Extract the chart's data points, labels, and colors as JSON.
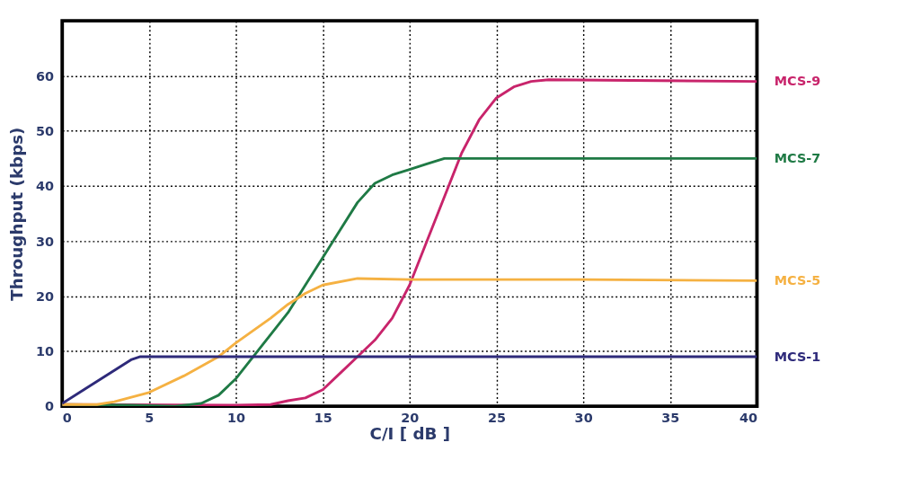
{
  "chart_data": {
    "type": "line",
    "xlabel": "C/I [ dB ]",
    "ylabel": "Throughput (kbps)",
    "xlim": [
      0,
      40
    ],
    "xticks": [
      0,
      5,
      10,
      15,
      20,
      25,
      30,
      35,
      40
    ],
    "ylim": [
      0,
      70
    ],
    "yticks": [
      0,
      10,
      20,
      30,
      40,
      50,
      60
    ],
    "grid": true,
    "legend": false,
    "marker": "none",
    "line_style": "solid",
    "series": [
      {
        "name": "MCS-9",
        "color": "#c8246b",
        "x": [
          0,
          10,
          12,
          13,
          14,
          15,
          16,
          17,
          18,
          19,
          20,
          21,
          22,
          23,
          24,
          25,
          26,
          27,
          28,
          40
        ],
        "values": [
          0.3,
          0.2,
          0.3,
          1,
          1.5,
          3,
          6,
          9,
          12,
          16,
          22,
          30,
          38,
          46,
          52,
          56,
          58,
          59,
          59.3,
          59
        ]
      },
      {
        "name": "MCS-7",
        "color": "#1f7a45",
        "x": [
          0,
          4,
          6.5,
          8,
          9,
          10,
          11,
          12,
          13,
          14,
          15,
          16,
          17,
          18,
          19,
          20,
          21,
          22,
          30,
          40
        ],
        "values": [
          0.3,
          0.2,
          0,
          0.5,
          2,
          5,
          9,
          13,
          17,
          22,
          27,
          32,
          37,
          40.5,
          42,
          43,
          44,
          45,
          45,
          45
        ]
      },
      {
        "name": "MCS-5",
        "color": "#f5b142",
        "x": [
          0,
          2,
          3,
          5,
          7,
          9,
          10,
          12,
          13,
          14,
          15,
          17,
          20,
          30,
          40
        ],
        "values": [
          0.3,
          0.3,
          0.8,
          2.5,
          5.5,
          9,
          11.5,
          16,
          18.5,
          20.5,
          22,
          23.2,
          23,
          23,
          22.8
        ]
      },
      {
        "name": "MCS-1",
        "color": "#2e2a7a",
        "x": [
          0,
          1,
          2,
          3,
          4,
          4.5,
          40
        ],
        "values": [
          0.5,
          2.5,
          4.5,
          6.5,
          8.5,
          9,
          9
        ]
      }
    ]
  }
}
